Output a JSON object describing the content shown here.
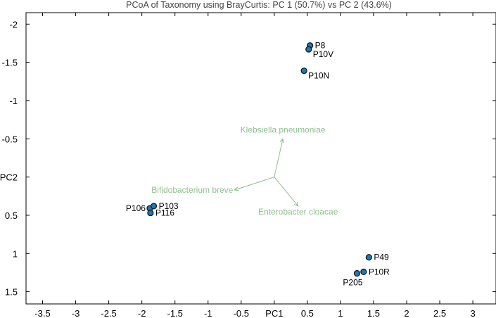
{
  "chart_data": {
    "type": "scatter",
    "title": "PCoA of Taxonomy using BrayCurtis: PC 1 (50.7%) vs PC 2 (43.6%)",
    "xlabel": "PC1",
    "ylabel": "PC2",
    "xlim": [
      -3.75,
      3.35
    ],
    "ylim": [
      -2.15,
      1.66
    ],
    "y_inverted": true,
    "x_ticks": [
      {
        "value": -3.5,
        "label": "-3.5"
      },
      {
        "value": -3,
        "label": "-3"
      },
      {
        "value": -2.5,
        "label": "-2.5"
      },
      {
        "value": -2,
        "label": "-2"
      },
      {
        "value": -1.5,
        "label": "-1.5"
      },
      {
        "value": -1,
        "label": "-1"
      },
      {
        "value": -0.5,
        "label": "-0.5"
      },
      {
        "value": 0,
        "label": "PC1"
      },
      {
        "value": 0.5,
        "label": "0.5"
      },
      {
        "value": 1,
        "label": "1"
      },
      {
        "value": 1.5,
        "label": "1.5"
      },
      {
        "value": 2,
        "label": "2"
      },
      {
        "value": 2.5,
        "label": "2.5"
      },
      {
        "value": 3,
        "label": "3"
      }
    ],
    "y_ticks": [
      {
        "value": -2,
        "label": "-2"
      },
      {
        "value": -1.5,
        "label": "-1.5"
      },
      {
        "value": -1,
        "label": "-1"
      },
      {
        "value": -0.5,
        "label": "-0.5"
      },
      {
        "value": 0,
        "label": "PC2"
      },
      {
        "value": 0.5,
        "label": "0.5"
      },
      {
        "value": 1,
        "label": "1"
      },
      {
        "value": 1.5,
        "label": "1.5"
      }
    ],
    "point_color": "#1f77b4",
    "points": [
      {
        "name": "P8",
        "x": 0.54,
        "y": -1.72,
        "anchor": "right"
      },
      {
        "name": "P10V",
        "x": 0.52,
        "y": -1.67,
        "anchor": "below-right"
      },
      {
        "name": "P10N",
        "x": 0.45,
        "y": -1.39,
        "anchor": "below-right"
      },
      {
        "name": "P106",
        "x": -1.88,
        "y": 0.41,
        "anchor": "left"
      },
      {
        "name": "P103",
        "x": -1.82,
        "y": 0.38,
        "anchor": "right"
      },
      {
        "name": "P116",
        "x": -1.87,
        "y": 0.47,
        "anchor": "right"
      },
      {
        "name": "P49",
        "x": 1.43,
        "y": 1.05,
        "anchor": "right"
      },
      {
        "name": "P10R",
        "x": 1.35,
        "y": 1.24,
        "anchor": "right"
      },
      {
        "name": "P205",
        "x": 1.25,
        "y": 1.26,
        "anchor": "below-left"
      }
    ],
    "biplot_color": "#8fbf8f",
    "biplot_origin": [
      0.0,
      0.0
    ],
    "biplot_vectors": [
      {
        "name": "Klebsiella pneumoniae",
        "x": 0.13,
        "y": -0.5,
        "anchor": "above"
      },
      {
        "name": "Bifidobacterium breve",
        "x": -0.6,
        "y": 0.17,
        "anchor": "left"
      },
      {
        "name": "Enterobacter cloacae",
        "x": 0.36,
        "y": 0.38,
        "anchor": "below"
      }
    ]
  }
}
